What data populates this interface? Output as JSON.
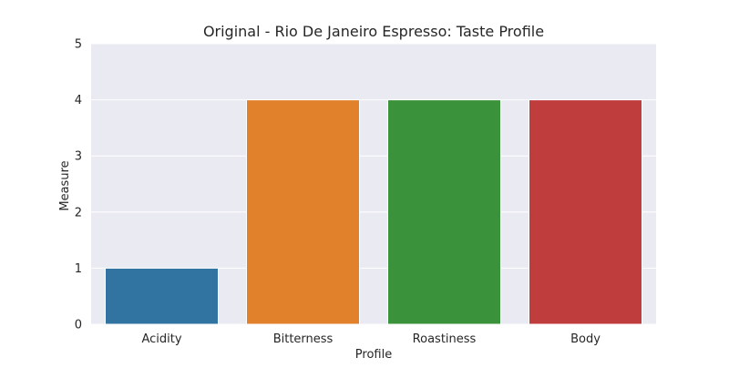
{
  "chart_data": {
    "type": "bar",
    "title": "Original - Rio De Janeiro Espresso: Taste Profile",
    "xlabel": "Profile",
    "ylabel": "Measure",
    "categories": [
      "Acidity",
      "Bitterness",
      "Roastiness",
      "Body"
    ],
    "values": [
      1,
      4,
      4,
      4
    ],
    "bar_colors": [
      "#3274a1",
      "#e1812c",
      "#3a923a",
      "#c03d3e"
    ],
    "ylim": [
      0,
      5
    ],
    "yticks": [
      "0",
      "1",
      "2",
      "3",
      "4",
      "5"
    ],
    "grid": true,
    "background": "#eaeaf2",
    "legend": "none"
  }
}
